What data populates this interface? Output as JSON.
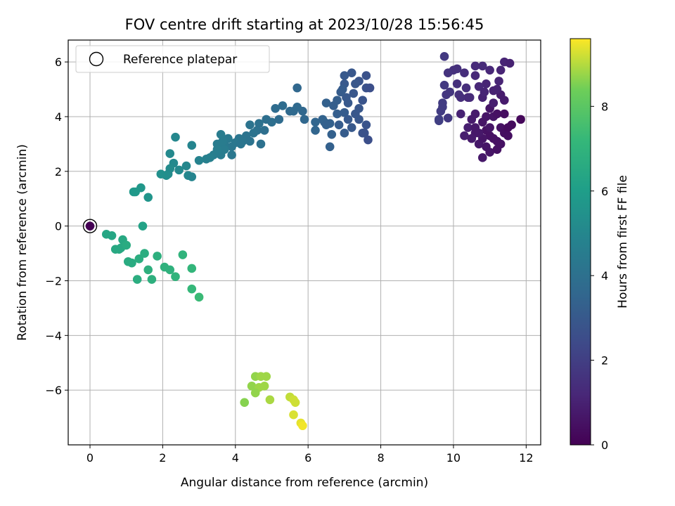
{
  "chart_data": {
    "type": "scatter",
    "title": "FOV centre drift starting at 2023/10/28 15:56:45",
    "xlabel": "Angular distance from reference (arcmin)",
    "ylabel": "Rotation from reference (arcmin)",
    "xlim": [
      -0.6,
      12.4
    ],
    "ylim": [
      -8.0,
      6.8
    ],
    "x_ticks": [
      0,
      2,
      4,
      6,
      8,
      10,
      12
    ],
    "y_ticks": [
      -6,
      -4,
      -2,
      0,
      2,
      4,
      6
    ],
    "grid": true,
    "legend": {
      "placement": "top-left",
      "entries": [
        "Reference platepar"
      ]
    },
    "reference_point": {
      "x": 0.0,
      "y": 0.0
    },
    "colorbar": {
      "label": "Hours from first FF file",
      "range": [
        0,
        9.6
      ],
      "ticks": [
        0,
        2,
        4,
        6,
        8
      ],
      "colormap": [
        "#440154",
        "#3b528b",
        "#21918c",
        "#5ec962",
        "#fde725"
      ]
    },
    "points": [
      {
        "x": 10.9,
        "y": 3.5,
        "h": 0.5
      },
      {
        "x": 11.0,
        "y": 3.3,
        "h": 0.5
      },
      {
        "x": 10.8,
        "y": 3.8,
        "h": 0.6
      },
      {
        "x": 11.2,
        "y": 3.1,
        "h": 0.5
      },
      {
        "x": 10.6,
        "y": 3.4,
        "h": 0.7
      },
      {
        "x": 11.1,
        "y": 4.0,
        "h": 0.6
      },
      {
        "x": 10.7,
        "y": 3.0,
        "h": 0.7
      },
      {
        "x": 11.3,
        "y": 3.6,
        "h": 0.5
      },
      {
        "x": 10.5,
        "y": 3.9,
        "h": 0.8
      },
      {
        "x": 11.4,
        "y": 3.4,
        "h": 0.4
      },
      {
        "x": 10.9,
        "y": 2.9,
        "h": 0.6
      },
      {
        "x": 11.0,
        "y": 2.7,
        "h": 0.6
      },
      {
        "x": 10.8,
        "y": 2.5,
        "h": 0.7
      },
      {
        "x": 11.2,
        "y": 2.8,
        "h": 0.5
      },
      {
        "x": 11.5,
        "y": 3.6,
        "h": 0.3
      },
      {
        "x": 11.6,
        "y": 3.7,
        "h": 0.3
      },
      {
        "x": 11.85,
        "y": 3.9,
        "h": 0.2
      },
      {
        "x": 10.4,
        "y": 3.6,
        "h": 0.9
      },
      {
        "x": 10.3,
        "y": 3.3,
        "h": 0.9
      },
      {
        "x": 10.6,
        "y": 4.1,
        "h": 0.8
      },
      {
        "x": 11.0,
        "y": 4.3,
        "h": 0.6
      },
      {
        "x": 11.2,
        "y": 4.1,
        "h": 0.5
      },
      {
        "x": 11.4,
        "y": 4.1,
        "h": 0.4
      },
      {
        "x": 10.5,
        "y": 3.2,
        "h": 0.8
      },
      {
        "x": 10.2,
        "y": 4.1,
        "h": 1.0
      },
      {
        "x": 11.3,
        "y": 3.0,
        "h": 0.5
      },
      {
        "x": 10.6,
        "y": 3.6,
        "h": 0.7
      },
      {
        "x": 11.1,
        "y": 3.2,
        "h": 0.5
      },
      {
        "x": 10.8,
        "y": 3.2,
        "h": 0.6
      },
      {
        "x": 11.0,
        "y": 3.6,
        "h": 0.6
      },
      {
        "x": 10.7,
        "y": 3.4,
        "h": 0.7
      },
      {
        "x": 11.5,
        "y": 3.3,
        "h": 0.4
      },
      {
        "x": 10.9,
        "y": 4.0,
        "h": 0.6
      },
      {
        "x": 10.8,
        "y": 4.7,
        "h": 1.0
      },
      {
        "x": 11.1,
        "y": 4.5,
        "h": 0.9
      },
      {
        "x": 11.3,
        "y": 4.8,
        "h": 0.8
      },
      {
        "x": 11.4,
        "y": 4.6,
        "h": 0.8
      },
      {
        "x": 10.9,
        "y": 5.2,
        "h": 1.1
      },
      {
        "x": 11.2,
        "y": 5.0,
        "h": 1.0
      },
      {
        "x": 10.6,
        "y": 5.5,
        "h": 1.2
      },
      {
        "x": 11.0,
        "y": 5.7,
        "h": 1.2
      },
      {
        "x": 11.3,
        "y": 5.7,
        "h": 1.1
      },
      {
        "x": 11.4,
        "y": 6.0,
        "h": 1.1
      },
      {
        "x": 11.55,
        "y": 5.95,
        "h": 1.0
      },
      {
        "x": 10.8,
        "y": 5.85,
        "h": 1.3
      },
      {
        "x": 10.6,
        "y": 5.85,
        "h": 1.3
      },
      {
        "x": 11.25,
        "y": 5.3,
        "h": 1.1
      },
      {
        "x": 10.7,
        "y": 5.1,
        "h": 1.2
      },
      {
        "x": 11.1,
        "y": 4.95,
        "h": 1.0
      },
      {
        "x": 10.85,
        "y": 4.9,
        "h": 1.1
      },
      {
        "x": 10.4,
        "y": 4.7,
        "h": 1.2
      },
      {
        "x": 10.3,
        "y": 5.6,
        "h": 1.4
      },
      {
        "x": 10.1,
        "y": 5.75,
        "h": 1.5
      },
      {
        "x": 10.0,
        "y": 5.7,
        "h": 1.5
      },
      {
        "x": 9.85,
        "y": 5.6,
        "h": 1.6
      },
      {
        "x": 10.1,
        "y": 5.2,
        "h": 1.5
      },
      {
        "x": 9.9,
        "y": 4.9,
        "h": 1.7
      },
      {
        "x": 9.8,
        "y": 4.8,
        "h": 1.7
      },
      {
        "x": 9.75,
        "y": 5.15,
        "h": 1.8
      },
      {
        "x": 10.15,
        "y": 4.8,
        "h": 1.5
      },
      {
        "x": 10.35,
        "y": 5.05,
        "h": 1.4
      },
      {
        "x": 10.45,
        "y": 4.7,
        "h": 1.3
      },
      {
        "x": 9.7,
        "y": 4.5,
        "h": 1.9
      },
      {
        "x": 9.65,
        "y": 4.2,
        "h": 1.9
      },
      {
        "x": 9.6,
        "y": 3.9,
        "h": 2.0
      },
      {
        "x": 9.6,
        "y": 3.85,
        "h": 2.0
      },
      {
        "x": 9.85,
        "y": 3.95,
        "h": 1.8
      },
      {
        "x": 9.7,
        "y": 4.35,
        "h": 1.9
      },
      {
        "x": 10.2,
        "y": 4.7,
        "h": 1.4
      },
      {
        "x": 9.75,
        "y": 6.2,
        "h": 1.8
      },
      {
        "x": 7.65,
        "y": 3.15,
        "h": 2.6
      },
      {
        "x": 7.5,
        "y": 3.4,
        "h": 2.8
      },
      {
        "x": 7.4,
        "y": 3.9,
        "h": 2.9
      },
      {
        "x": 7.6,
        "y": 3.7,
        "h": 2.8
      },
      {
        "x": 7.3,
        "y": 4.1,
        "h": 2.9
      },
      {
        "x": 7.1,
        "y": 4.5,
        "h": 3.0
      },
      {
        "x": 7.5,
        "y": 4.6,
        "h": 2.8
      },
      {
        "x": 7.4,
        "y": 4.3,
        "h": 2.9
      },
      {
        "x": 7.6,
        "y": 5.05,
        "h": 2.7
      },
      {
        "x": 7.7,
        "y": 5.05,
        "h": 2.6
      },
      {
        "x": 7.4,
        "y": 5.3,
        "h": 2.8
      },
      {
        "x": 7.2,
        "y": 5.6,
        "h": 2.9
      },
      {
        "x": 7.0,
        "y": 5.5,
        "h": 3.0
      },
      {
        "x": 7.6,
        "y": 5.5,
        "h": 2.7
      },
      {
        "x": 7.0,
        "y": 5.2,
        "h": 3.0
      },
      {
        "x": 6.95,
        "y": 5.0,
        "h": 3.1
      },
      {
        "x": 7.05,
        "y": 4.7,
        "h": 3.0
      },
      {
        "x": 6.9,
        "y": 4.9,
        "h": 3.1
      },
      {
        "x": 6.8,
        "y": 4.6,
        "h": 3.2
      },
      {
        "x": 6.7,
        "y": 4.4,
        "h": 3.2
      },
      {
        "x": 6.5,
        "y": 4.5,
        "h": 3.3
      },
      {
        "x": 6.8,
        "y": 4.1,
        "h": 3.2
      },
      {
        "x": 7.0,
        "y": 4.15,
        "h": 3.1
      },
      {
        "x": 7.1,
        "y": 3.9,
        "h": 3.0
      },
      {
        "x": 7.2,
        "y": 3.6,
        "h": 3.0
      },
      {
        "x": 7.0,
        "y": 3.4,
        "h": 3.1
      },
      {
        "x": 6.85,
        "y": 3.7,
        "h": 3.1
      },
      {
        "x": 6.6,
        "y": 3.75,
        "h": 3.3
      },
      {
        "x": 6.45,
        "y": 3.8,
        "h": 3.4
      },
      {
        "x": 6.4,
        "y": 3.9,
        "h": 3.4
      },
      {
        "x": 6.2,
        "y": 3.8,
        "h": 3.5
      },
      {
        "x": 6.2,
        "y": 3.5,
        "h": 3.5
      },
      {
        "x": 6.65,
        "y": 3.35,
        "h": 3.3
      },
      {
        "x": 6.6,
        "y": 2.9,
        "h": 3.3
      },
      {
        "x": 7.25,
        "y": 4.85,
        "h": 2.9
      },
      {
        "x": 7.3,
        "y": 5.2,
        "h": 2.9
      },
      {
        "x": 7.55,
        "y": 3.4,
        "h": 2.7
      },
      {
        "x": 6.5,
        "y": 3.7,
        "h": 3.3
      },
      {
        "x": 5.9,
        "y": 3.9,
        "h": 3.6
      },
      {
        "x": 5.7,
        "y": 5.05,
        "h": 3.6
      },
      {
        "x": 5.85,
        "y": 4.2,
        "h": 3.6
      },
      {
        "x": 5.6,
        "y": 4.2,
        "h": 3.7
      },
      {
        "x": 5.5,
        "y": 4.2,
        "h": 3.7
      },
      {
        "x": 5.7,
        "y": 4.35,
        "h": 3.7
      },
      {
        "x": 5.3,
        "y": 4.4,
        "h": 3.8
      },
      {
        "x": 5.1,
        "y": 4.3,
        "h": 3.8
      },
      {
        "x": 5.0,
        "y": 3.8,
        "h": 3.9
      },
      {
        "x": 5.2,
        "y": 3.9,
        "h": 3.8
      },
      {
        "x": 4.85,
        "y": 3.9,
        "h": 3.9
      },
      {
        "x": 4.65,
        "y": 3.75,
        "h": 4.0
      },
      {
        "x": 4.6,
        "y": 3.5,
        "h": 4.0
      },
      {
        "x": 4.8,
        "y": 3.5,
        "h": 3.9
      },
      {
        "x": 4.5,
        "y": 3.4,
        "h": 4.1
      },
      {
        "x": 4.4,
        "y": 3.7,
        "h": 4.1
      },
      {
        "x": 4.3,
        "y": 3.3,
        "h": 4.1
      },
      {
        "x": 4.2,
        "y": 3.1,
        "h": 4.2
      },
      {
        "x": 4.1,
        "y": 3.2,
        "h": 4.2
      },
      {
        "x": 4.0,
        "y": 3.05,
        "h": 4.3
      },
      {
        "x": 4.15,
        "y": 3.0,
        "h": 4.2
      },
      {
        "x": 4.4,
        "y": 3.1,
        "h": 4.1
      },
      {
        "x": 4.7,
        "y": 3.0,
        "h": 4.0
      },
      {
        "x": 3.9,
        "y": 2.9,
        "h": 4.3
      },
      {
        "x": 3.8,
        "y": 3.2,
        "h": 4.4
      },
      {
        "x": 3.7,
        "y": 3.0,
        "h": 4.4
      },
      {
        "x": 3.6,
        "y": 3.35,
        "h": 4.5
      },
      {
        "x": 3.6,
        "y": 2.9,
        "h": 4.5
      },
      {
        "x": 3.5,
        "y": 3.0,
        "h": 4.5
      },
      {
        "x": 3.4,
        "y": 2.6,
        "h": 4.6
      },
      {
        "x": 3.6,
        "y": 2.6,
        "h": 4.5
      },
      {
        "x": 3.7,
        "y": 2.8,
        "h": 4.5
      },
      {
        "x": 3.9,
        "y": 2.6,
        "h": 4.3
      },
      {
        "x": 3.3,
        "y": 2.5,
        "h": 4.7
      },
      {
        "x": 3.2,
        "y": 2.45,
        "h": 4.7
      },
      {
        "x": 3.0,
        "y": 2.4,
        "h": 4.8
      },
      {
        "x": 2.8,
        "y": 2.95,
        "h": 4.9
      },
      {
        "x": 2.35,
        "y": 3.25,
        "h": 5.0
      },
      {
        "x": 2.2,
        "y": 2.65,
        "h": 5.1
      },
      {
        "x": 2.65,
        "y": 2.2,
        "h": 5.0
      },
      {
        "x": 2.7,
        "y": 1.85,
        "h": 5.0
      },
      {
        "x": 2.8,
        "y": 1.8,
        "h": 4.9
      },
      {
        "x": 2.3,
        "y": 2.3,
        "h": 5.1
      },
      {
        "x": 2.2,
        "y": 2.1,
        "h": 5.2
      },
      {
        "x": 2.15,
        "y": 1.9,
        "h": 5.2
      },
      {
        "x": 2.1,
        "y": 1.85,
        "h": 5.3
      },
      {
        "x": 1.95,
        "y": 1.9,
        "h": 5.4
      },
      {
        "x": 2.45,
        "y": 2.05,
        "h": 5.1
      },
      {
        "x": 3.5,
        "y": 2.8,
        "h": 4.6
      },
      {
        "x": 3.65,
        "y": 3.1,
        "h": 4.5
      },
      {
        "x": 1.2,
        "y": 1.25,
        "h": 5.8
      },
      {
        "x": 1.4,
        "y": 1.4,
        "h": 5.7
      },
      {
        "x": 1.6,
        "y": 1.05,
        "h": 5.6
      },
      {
        "x": 1.25,
        "y": 1.25,
        "h": 5.8
      },
      {
        "x": 1.45,
        "y": 0.0,
        "h": 6.2
      },
      {
        "x": 0.45,
        "y": -0.3,
        "h": 6.4
      },
      {
        "x": 0.6,
        "y": -0.35,
        "h": 6.4
      },
      {
        "x": 0.7,
        "y": -0.85,
        "h": 6.5
      },
      {
        "x": 0.85,
        "y": -0.8,
        "h": 6.5
      },
      {
        "x": 0.9,
        "y": -0.5,
        "h": 6.5
      },
      {
        "x": 1.0,
        "y": -0.7,
        "h": 6.6
      },
      {
        "x": 1.05,
        "y": -1.3,
        "h": 6.6
      },
      {
        "x": 1.15,
        "y": -1.35,
        "h": 6.6
      },
      {
        "x": 1.35,
        "y": -1.2,
        "h": 6.7
      },
      {
        "x": 1.5,
        "y": -1.0,
        "h": 6.7
      },
      {
        "x": 1.6,
        "y": -1.6,
        "h": 6.8
      },
      {
        "x": 1.3,
        "y": -1.95,
        "h": 6.7
      },
      {
        "x": 1.7,
        "y": -1.95,
        "h": 6.8
      },
      {
        "x": 1.85,
        "y": -1.1,
        "h": 6.8
      },
      {
        "x": 2.05,
        "y": -1.5,
        "h": 6.9
      },
      {
        "x": 2.2,
        "y": -1.6,
        "h": 6.9
      },
      {
        "x": 2.35,
        "y": -1.85,
        "h": 7.0
      },
      {
        "x": 2.55,
        "y": -1.05,
        "h": 7.0
      },
      {
        "x": 2.8,
        "y": -1.55,
        "h": 7.1
      },
      {
        "x": 2.8,
        "y": -2.3,
        "h": 7.2
      },
      {
        "x": 3.0,
        "y": -2.6,
        "h": 7.3
      },
      {
        "x": 0.8,
        "y": -0.85,
        "h": 6.5
      },
      {
        "x": 4.25,
        "y": -6.45,
        "h": 8.6
      },
      {
        "x": 4.45,
        "y": -5.85,
        "h": 8.7
      },
      {
        "x": 4.55,
        "y": -5.5,
        "h": 8.7
      },
      {
        "x": 4.7,
        "y": -5.5,
        "h": 8.8
      },
      {
        "x": 4.85,
        "y": -5.5,
        "h": 8.8
      },
      {
        "x": 4.65,
        "y": -5.9,
        "h": 8.8
      },
      {
        "x": 4.8,
        "y": -5.85,
        "h": 8.8
      },
      {
        "x": 4.55,
        "y": -6.1,
        "h": 8.7
      },
      {
        "x": 4.95,
        "y": -6.35,
        "h": 8.9
      },
      {
        "x": 5.5,
        "y": -6.25,
        "h": 9.1
      },
      {
        "x": 5.6,
        "y": -6.35,
        "h": 9.2
      },
      {
        "x": 5.65,
        "y": -6.45,
        "h": 9.2
      },
      {
        "x": 5.6,
        "y": -6.9,
        "h": 9.3
      },
      {
        "x": 5.8,
        "y": -7.2,
        "h": 9.4
      },
      {
        "x": 5.85,
        "y": -7.3,
        "h": 9.5
      },
      {
        "x": 0.0,
        "y": 0.0,
        "h": 0.0
      }
    ]
  }
}
